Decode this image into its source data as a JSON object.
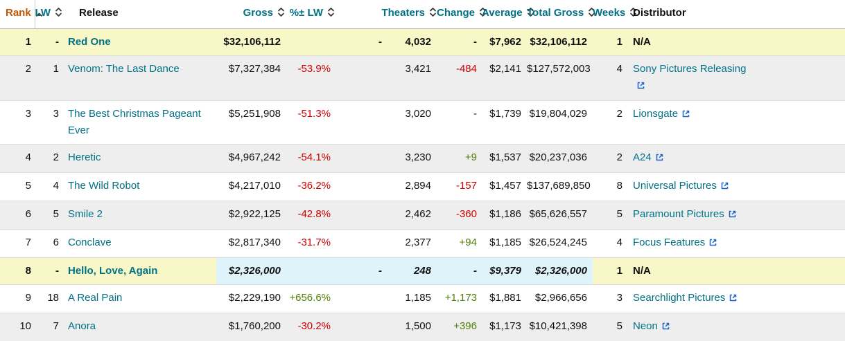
{
  "table": {
    "columns": [
      {
        "key": "rank",
        "label": "Rank",
        "align": "right",
        "sortable": true,
        "sort_state": "asc"
      },
      {
        "key": "lw",
        "label": "LW",
        "align": "right",
        "sortable": true,
        "sort_state": "none"
      },
      {
        "key": "release",
        "label": "Release",
        "align": "left",
        "sortable": false,
        "sort_state": "none"
      },
      {
        "key": "gross",
        "label": "Gross",
        "align": "right",
        "sortable": true,
        "sort_state": "none"
      },
      {
        "key": "pct_lw",
        "label": "%± LW",
        "align": "right",
        "sortable": true,
        "sort_state": "none"
      },
      {
        "key": "theaters",
        "label": "Theaters",
        "align": "right",
        "sortable": true,
        "sort_state": "none"
      },
      {
        "key": "change",
        "label": "Change",
        "align": "right",
        "sortable": true,
        "sort_state": "none"
      },
      {
        "key": "average",
        "label": "Average",
        "align": "right",
        "sortable": true,
        "sort_state": "none"
      },
      {
        "key": "total_gross",
        "label": "Total Gross",
        "align": "right",
        "sortable": true,
        "sort_state": "none"
      },
      {
        "key": "weeks",
        "label": "Weeks",
        "align": "right",
        "sortable": true,
        "sort_state": "none"
      },
      {
        "key": "distributor",
        "label": "Distributor",
        "align": "left",
        "sortable": false,
        "sort_state": "none"
      }
    ],
    "rows": [
      {
        "style": "new",
        "distributor_external": false,
        "cells": {
          "rank": "1",
          "lw": "-",
          "release": "Red One",
          "gross": "$32,106,112",
          "pct_lw": "-",
          "theaters": "4,032",
          "change": "-",
          "average": "$7,962",
          "total_gross": "$32,106,112",
          "weeks": "1",
          "distributor": "N/A"
        }
      },
      {
        "style": "normal",
        "distributor_external": true,
        "cells": {
          "rank": "2",
          "lw": "1",
          "release": "Venom: The Last Dance",
          "gross": "$7,327,384",
          "pct_lw": "-53.9%",
          "theaters": "3,421",
          "change": "-484",
          "average": "$2,141",
          "total_gross": "$127,572,003",
          "weeks": "4",
          "distributor": "Sony Pictures Releasing"
        }
      },
      {
        "style": "normal",
        "distributor_external": true,
        "cells": {
          "rank": "3",
          "lw": "3",
          "release": "The Best Christmas Pageant Ever",
          "gross": "$5,251,908",
          "pct_lw": "-51.3%",
          "theaters": "3,020",
          "change": "-",
          "average": "$1,739",
          "total_gross": "$19,804,029",
          "weeks": "2",
          "distributor": "Lionsgate"
        }
      },
      {
        "style": "normal",
        "distributor_external": true,
        "cells": {
          "rank": "4",
          "lw": "2",
          "release": "Heretic",
          "gross": "$4,967,242",
          "pct_lw": "-54.1%",
          "theaters": "3,230",
          "change": "+9",
          "average": "$1,537",
          "total_gross": "$20,237,036",
          "weeks": "2",
          "distributor": "A24"
        }
      },
      {
        "style": "normal",
        "distributor_external": true,
        "cells": {
          "rank": "5",
          "lw": "4",
          "release": "The Wild Robot",
          "gross": "$4,217,010",
          "pct_lw": "-36.2%",
          "theaters": "2,894",
          "change": "-157",
          "average": "$1,457",
          "total_gross": "$137,689,850",
          "weeks": "8",
          "distributor": "Universal Pictures"
        }
      },
      {
        "style": "normal",
        "distributor_external": true,
        "cells": {
          "rank": "6",
          "lw": "5",
          "release": "Smile 2",
          "gross": "$2,922,125",
          "pct_lw": "-42.8%",
          "theaters": "2,462",
          "change": "-360",
          "average": "$1,186",
          "total_gross": "$65,626,557",
          "weeks": "5",
          "distributor": "Paramount Pictures"
        }
      },
      {
        "style": "normal",
        "distributor_external": true,
        "cells": {
          "rank": "7",
          "lw": "6",
          "release": "Conclave",
          "gross": "$2,817,340",
          "pct_lw": "-31.7%",
          "theaters": "2,377",
          "change": "+94",
          "average": "$1,185",
          "total_gross": "$26,524,245",
          "weeks": "4",
          "distributor": "Focus Features"
        }
      },
      {
        "style": "estimate",
        "distributor_external": false,
        "cells": {
          "rank": "8",
          "lw": "-",
          "release": "Hello, Love, Again",
          "gross": "$2,326,000",
          "pct_lw": "-",
          "theaters": "248",
          "change": "-",
          "average": "$9,379",
          "total_gross": "$2,326,000",
          "weeks": "1",
          "distributor": "N/A"
        }
      },
      {
        "style": "normal",
        "distributor_external": true,
        "cells": {
          "rank": "9",
          "lw": "18",
          "release": "A Real Pain",
          "gross": "$2,229,190",
          "pct_lw": "+656.6%",
          "theaters": "1,185",
          "change": "+1,173",
          "average": "$1,881",
          "total_gross": "$2,966,656",
          "weeks": "3",
          "distributor": "Searchlight Pictures"
        }
      },
      {
        "style": "normal",
        "distributor_external": true,
        "cells": {
          "rank": "10",
          "lw": "7",
          "release": "Anora",
          "gross": "$1,760,200",
          "pct_lw": "-30.2%",
          "theaters": "1,500",
          "change": "+396",
          "average": "$1,173",
          "total_gross": "$10,421,398",
          "weeks": "5",
          "distributor": "Neon"
        }
      }
    ]
  },
  "colors": {
    "link_teal": "#007185",
    "sorted_header_orange": "#c45500",
    "negative_red": "#cc0000",
    "positive_green": "#508104",
    "new_release_row_bg": "#f7f7c8",
    "estimate_cell_bg": "#dff3fb",
    "external_link_icon_blue": "#1b63c8",
    "row_alt_bg": "#eeeeee",
    "row_border": "#dcdcdc",
    "header_text": "#0f1111"
  }
}
